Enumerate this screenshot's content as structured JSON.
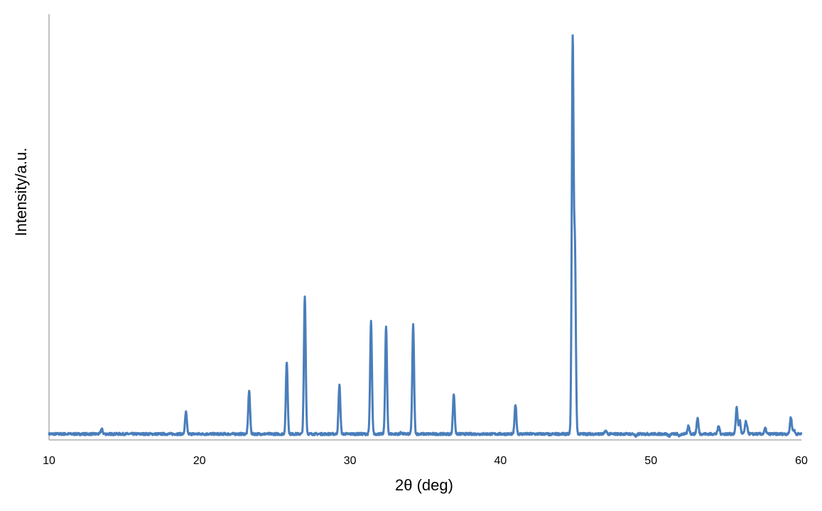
{
  "chart_data": {
    "type": "line",
    "title": "",
    "xlabel": "2θ   (deg)",
    "ylabel": "Intensity/a.u.",
    "xlim": [
      10,
      60
    ],
    "ylim": [
      0,
      100
    ],
    "x_ticks": [
      10,
      20,
      30,
      40,
      50,
      60
    ],
    "y_tick_labels_shown": false,
    "grid": false,
    "legend": "none",
    "colors": {
      "series": "#4a7ebb",
      "axis": "#868686"
    },
    "baseline": 1.5,
    "peaks": [
      {
        "x": 13.5,
        "y": 2.8
      },
      {
        "x": 19.1,
        "y": 7.0
      },
      {
        "x": 23.3,
        "y": 12.5
      },
      {
        "x": 25.8,
        "y": 19.7
      },
      {
        "x": 27.0,
        "y": 36.3
      },
      {
        "x": 29.3,
        "y": 13.9
      },
      {
        "x": 31.4,
        "y": 29.8
      },
      {
        "x": 32.4,
        "y": 28.7
      },
      {
        "x": 33.4,
        "y": 1.8
      },
      {
        "x": 34.2,
        "y": 29.0
      },
      {
        "x": 36.9,
        "y": 11.6
      },
      {
        "x": 41.0,
        "y": 9.0
      },
      {
        "x": 43.3,
        "y": 1.3
      },
      {
        "x": 44.8,
        "y": 100.0
      },
      {
        "x": 44.95,
        "y": 47.0
      },
      {
        "x": 47.0,
        "y": 2.3
      },
      {
        "x": 49.0,
        "y": 0.8
      },
      {
        "x": 51.2,
        "y": 1.0
      },
      {
        "x": 51.9,
        "y": 1.0
      },
      {
        "x": 52.5,
        "y": 3.6
      },
      {
        "x": 53.1,
        "y": 5.5
      },
      {
        "x": 54.5,
        "y": 3.5
      },
      {
        "x": 55.7,
        "y": 8.3
      },
      {
        "x": 55.9,
        "y": 5.0
      },
      {
        "x": 56.3,
        "y": 4.3
      },
      {
        "x": 56.4,
        "y": 2.5
      },
      {
        "x": 57.6,
        "y": 2.9
      },
      {
        "x": 59.3,
        "y": 5.8
      },
      {
        "x": 59.5,
        "y": 2.5
      }
    ]
  }
}
